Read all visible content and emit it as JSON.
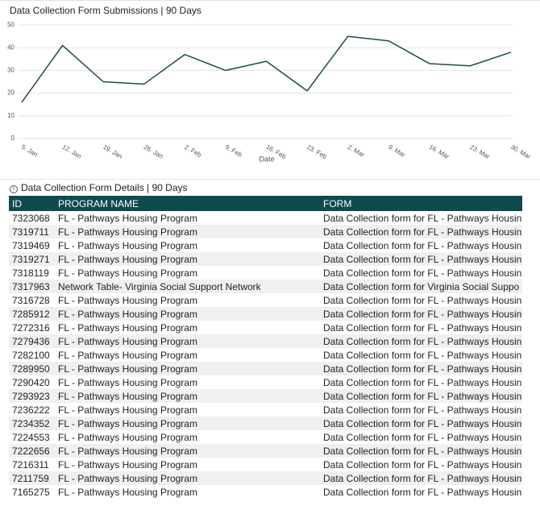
{
  "chart_data": {
    "type": "line",
    "title": "Data Collection Form Submissions | 90 Days",
    "x_label": "Date",
    "categories": [
      "5. Jan",
      "12. Jan",
      "19. Jan",
      "26. Jan",
      "2. Feb",
      "9. Feb",
      "16. Feb",
      "23. Feb",
      "2. Mar",
      "9. Mar",
      "16. Mar",
      "23. Mar",
      "30. Mar"
    ],
    "values": [
      16,
      41,
      25,
      24,
      37,
      30,
      34,
      21,
      45,
      43,
      33,
      32,
      38
    ],
    "color": "#1d4a50",
    "ylim": [
      0,
      50
    ],
    "yticks": [
      0,
      10,
      20,
      30,
      40,
      50
    ],
    "grid": true
  },
  "table": {
    "title": "Data Collection Form Details | 90 Days",
    "header": [
      "ID",
      "PROGRAM NAME",
      "FORM"
    ],
    "rows": [
      [
        "7323068",
        "FL - Pathways Housing Program",
        "Data Collection form for FL - Pathways Housin"
      ],
      [
        "7319711",
        "FL - Pathways Housing Program",
        "Data Collection form for FL - Pathways Housin"
      ],
      [
        "7319469",
        "FL - Pathways Housing Program",
        "Data Collection form for FL - Pathways Housin"
      ],
      [
        "7319271",
        "FL - Pathways Housing Program",
        "Data Collection form for FL - Pathways Housin"
      ],
      [
        "7318119",
        "FL - Pathways Housing Program",
        "Data Collection form for FL - Pathways Housin"
      ],
      [
        "7317963",
        "Network Table- Virginia Social Support Network",
        "Data Collection form for Virginia Social Suppo"
      ],
      [
        "7316728",
        "FL - Pathways Housing Program",
        "Data Collection form for FL - Pathways Housin"
      ],
      [
        "7285912",
        "FL - Pathways Housing Program",
        "Data Collection form for FL - Pathways Housin"
      ],
      [
        "7272316",
        "FL - Pathways Housing Program",
        "Data Collection form for FL - Pathways Housin"
      ],
      [
        "7279436",
        "FL - Pathways Housing Program",
        "Data Collection form for FL - Pathways Housin"
      ],
      [
        "7282100",
        "FL - Pathways Housing Program",
        "Data Collection form for FL - Pathways Housin"
      ],
      [
        "7289950",
        "FL - Pathways Housing Program",
        "Data Collection form for FL - Pathways Housin"
      ],
      [
        "7290420",
        "FL - Pathways Housing Program",
        "Data Collection form for FL - Pathways Housin"
      ],
      [
        "7293923",
        "FL - Pathways Housing Program",
        "Data Collection form for FL - Pathways Housin"
      ],
      [
        "7236222",
        "FL - Pathways Housing Program",
        "Data Collection form for FL - Pathways Housin"
      ],
      [
        "7234352",
        "FL - Pathways Housing Program",
        "Data Collection form for FL - Pathways Housin"
      ],
      [
        "7224553",
        "FL - Pathways Housing Program",
        "Data Collection form for FL - Pathways Housin"
      ],
      [
        "7222656",
        "FL - Pathways Housing Program",
        "Data Collection form for FL - Pathways Housin"
      ],
      [
        "7216311",
        "FL - Pathways Housing Program",
        "Data Collection form for FL - Pathways Housin"
      ],
      [
        "7211759",
        "FL - Pathways Housing Program",
        "Data Collection form for FL - Pathways Housin"
      ],
      [
        "7165275",
        "FL - Pathways Housing Program",
        "Data Collection form for FL - Pathways Housin"
      ]
    ]
  }
}
